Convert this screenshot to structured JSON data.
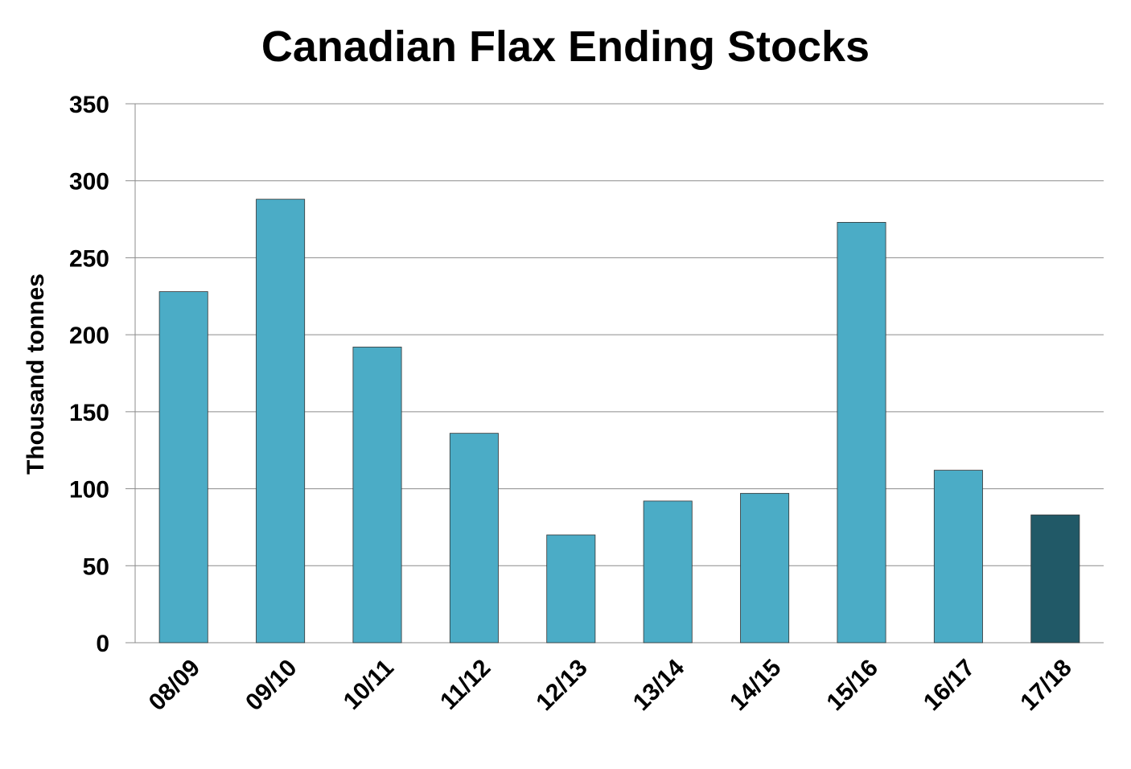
{
  "chart_data": {
    "type": "bar",
    "title": "Canadian Flax Ending Stocks",
    "y_label": "Thousand tonnes",
    "categories": [
      "08/09",
      "09/10",
      "10/11",
      "11/12",
      "12/13",
      "13/14",
      "14/15",
      "15/16",
      "16/17",
      "17/18"
    ],
    "values": [
      228,
      288,
      192,
      136,
      70,
      92,
      97,
      273,
      112,
      83
    ],
    "colors": [
      "#4bacc6",
      "#4bacc6",
      "#4bacc6",
      "#4bacc6",
      "#4bacc6",
      "#4bacc6",
      "#4bacc6",
      "#4bacc6",
      "#4bacc6",
      "#215967"
    ],
    "ylim": [
      0,
      350
    ],
    "yticks": [
      0,
      50,
      100,
      150,
      200,
      250,
      300,
      350
    ],
    "grid": true
  }
}
